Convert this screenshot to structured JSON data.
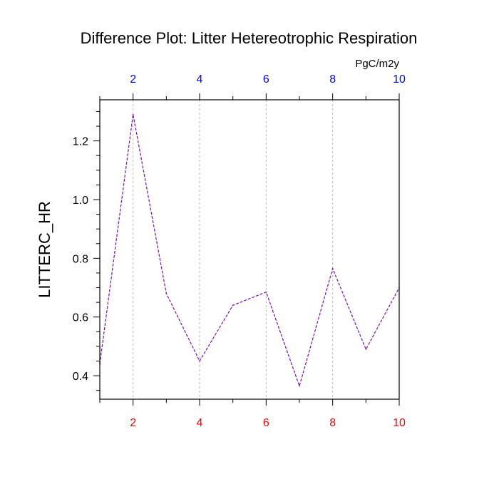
{
  "chart_data": {
    "type": "line",
    "title": "Difference Plot: Litter Hetereotrophic Respiration",
    "units_label": "PgC/m2y",
    "xlabel": "",
    "ylabel": "LITTERC_HR",
    "x": [
      1,
      2,
      3,
      4,
      5,
      6,
      7,
      8,
      9,
      10
    ],
    "series": [
      {
        "values": [
          0.44,
          1.29,
          0.68,
          0.45,
          0.64,
          0.685,
          0.365,
          0.765,
          0.49,
          0.7
        ],
        "color": "#7a0fb8",
        "dash": "dashed"
      }
    ],
    "xlim": [
      1,
      10
    ],
    "ylim": [
      0.32,
      1.34
    ],
    "bottom_x_ticks": [
      "2",
      "4",
      "6",
      "8",
      "10"
    ],
    "top_x_ticks": [
      "2",
      "4",
      "6",
      "8",
      "10"
    ],
    "y_ticks": [
      "0.4",
      "0.6",
      "0.8",
      "1.0",
      "1.2"
    ],
    "bottom_tick_color": "#ff0000",
    "top_tick_color": "#0000ff",
    "x_grid": true,
    "y_grid": false,
    "legend": "none"
  }
}
